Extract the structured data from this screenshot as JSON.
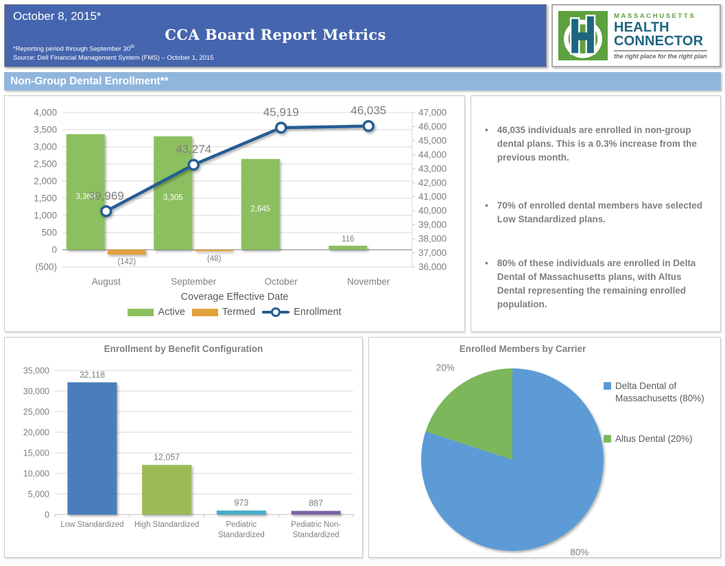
{
  "header": {
    "date": "October 8, 2015*",
    "title": "CCA Board Report Metrics",
    "footnote1": "*Reporting period through September 30",
    "footnote1_sup": "th",
    "footnote2": "Source: Dell Financial Management System (FMS) – October 1, 2015"
  },
  "logo": {
    "brand_top": "MASSACHUSETTS",
    "line1": "HEALTH",
    "line2": "CONNECTOR",
    "tagline": "the right place for the right plan",
    "colors": {
      "green": "#5EA13F",
      "blue": "#1E6680"
    }
  },
  "section": {
    "title": "Non-Group Dental Enrollment**"
  },
  "bullets": [
    "46,035 individuals are enrolled in non-group dental plans. This is a 0.3% increase from the previous month.",
    "70% of enrolled dental members have selected Low Standardized plans.",
    "80% of these individuals are enrolled in Delta Dental of Massachusetts plans, with Altus Dental representing the remaining enrolled population."
  ],
  "chart_data": [
    {
      "type": "combo",
      "categories": [
        "August",
        "September",
        "October",
        "November"
      ],
      "xlabel": "Coverage Effective Date",
      "left_axis": {
        "min": -500,
        "max": 4000,
        "step": 500
      },
      "right_axis": {
        "min": 36000,
        "max": 47000,
        "step": 1000
      },
      "series": [
        {
          "name": "Active",
          "kind": "bar",
          "axis": "left",
          "color": "#8CBF5E",
          "values": [
            3369,
            3305,
            2645,
            116
          ],
          "labels": [
            "3,369",
            "3,305",
            "2,645",
            "116"
          ]
        },
        {
          "name": "Termed",
          "kind": "bar",
          "axis": "left",
          "color": "#E2A23B",
          "values": [
            -142,
            -48,
            null,
            null
          ],
          "labels": [
            "(142)",
            "(48)",
            "",
            ""
          ]
        },
        {
          "name": "Enrollment",
          "kind": "line",
          "axis": "right",
          "color": "#265D93",
          "values": [
            39969,
            43274,
            45919,
            46035
          ],
          "labels": [
            "39,969",
            "43,274",
            "45,919",
            "46,035"
          ]
        }
      ],
      "grid": true,
      "legend_position": "bottom"
    },
    {
      "type": "bar",
      "title": "Enrollment by Benefit Configuration",
      "categories": [
        "Low Standardized",
        "High Standardized",
        "Pediatric Standardized",
        "Pediatric Non-Standardized"
      ],
      "category_lines": [
        [
          "Low Standardized"
        ],
        [
          "High Standardized"
        ],
        [
          "Pediatric",
          "Standardized"
        ],
        [
          "Pediatric Non-",
          "Standardized"
        ]
      ],
      "values": [
        32118,
        12057,
        973,
        887
      ],
      "labels": [
        "32,118",
        "12,057",
        "973",
        "887"
      ],
      "colors": [
        "#4A7EBB",
        "#9BBB59",
        "#45AEC8",
        "#7D62A2"
      ],
      "ylim": [
        0,
        35000
      ],
      "ytick_step": 5000,
      "grid": true,
      "legend_position": "none"
    },
    {
      "type": "pie",
      "title": "Enrolled Members by Carrier",
      "slices": [
        {
          "label": "Delta Dental of Massachusetts (80%)",
          "value": 80,
          "pct_label": "80%",
          "color": "#5B9BD5"
        },
        {
          "label": "Altus Dental (20%)",
          "value": 20,
          "pct_label": "20%",
          "color": "#7CB75B"
        }
      ],
      "legend_position": "right"
    }
  ],
  "ui_colors": {
    "header_blue": "#4565AE",
    "section_blue": "#90B6DD",
    "axis_text": "#7F7F7F",
    "gridline": "#D9D9D9"
  }
}
